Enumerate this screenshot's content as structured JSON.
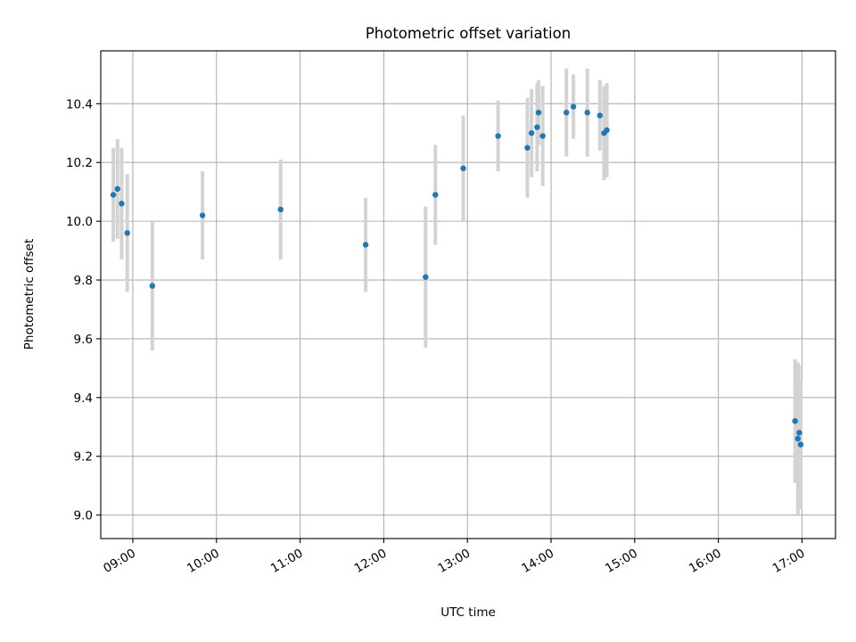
{
  "chart_data": {
    "type": "scatter",
    "title": "Photometric offset variation",
    "xlabel": "UTC time",
    "ylabel": "Photometric offset",
    "xlim": [
      "08:37",
      "17:24"
    ],
    "ylim": [
      8.92,
      10.58
    ],
    "x_ticks": [
      "09:00",
      "10:00",
      "11:00",
      "12:00",
      "13:00",
      "14:00",
      "15:00",
      "16:00",
      "17:00"
    ],
    "y_ticks": [
      9.0,
      9.2,
      9.4,
      9.6,
      9.8,
      10.0,
      10.2,
      10.4
    ],
    "y_tick_labels": [
      "9.0",
      "9.2",
      "9.4",
      "9.6",
      "9.8",
      "10.0",
      "10.2",
      "10.4"
    ],
    "grid": true,
    "marker_color": "#1f77b4",
    "errorbar_color": "#d3d3d3",
    "points": [
      {
        "x": "08:46",
        "y": 10.09,
        "err": 0.16
      },
      {
        "x": "08:49",
        "y": 10.11,
        "err": 0.17
      },
      {
        "x": "08:52",
        "y": 10.06,
        "err": 0.19
      },
      {
        "x": "08:56",
        "y": 9.96,
        "err": 0.2
      },
      {
        "x": "09:14",
        "y": 9.78,
        "err": 0.22
      },
      {
        "x": "09:50",
        "y": 10.02,
        "err": 0.15
      },
      {
        "x": "10:46",
        "y": 10.04,
        "err": 0.17
      },
      {
        "x": "11:47",
        "y": 9.92,
        "err": 0.16
      },
      {
        "x": "12:30",
        "y": 9.81,
        "err": 0.24
      },
      {
        "x": "12:37",
        "y": 10.09,
        "err": 0.17
      },
      {
        "x": "12:57",
        "y": 10.18,
        "err": 0.18
      },
      {
        "x": "13:22",
        "y": 10.29,
        "err": 0.12
      },
      {
        "x": "13:43",
        "y": 10.25,
        "err": 0.17
      },
      {
        "x": "13:46",
        "y": 10.3,
        "err": 0.15
      },
      {
        "x": "13:50",
        "y": 10.32,
        "err": 0.15
      },
      {
        "x": "13:51",
        "y": 10.37,
        "err": 0.11
      },
      {
        "x": "13:54",
        "y": 10.29,
        "err": 0.17
      },
      {
        "x": "14:11",
        "y": 10.37,
        "err": 0.15
      },
      {
        "x": "14:16",
        "y": 10.39,
        "err": 0.11
      },
      {
        "x": "14:26",
        "y": 10.37,
        "err": 0.15
      },
      {
        "x": "14:35",
        "y": 10.36,
        "err": 0.12
      },
      {
        "x": "14:38",
        "y": 10.3,
        "err": 0.16
      },
      {
        "x": "14:40",
        "y": 10.31,
        "err": 0.16
      },
      {
        "x": "16:55",
        "y": 9.32,
        "err": 0.21
      },
      {
        "x": "16:57",
        "y": 9.26,
        "err": 0.26
      },
      {
        "x": "16:58",
        "y": 9.28,
        "err": 0.23
      },
      {
        "x": "16:59",
        "y": 9.24,
        "err": 0.22
      }
    ]
  }
}
